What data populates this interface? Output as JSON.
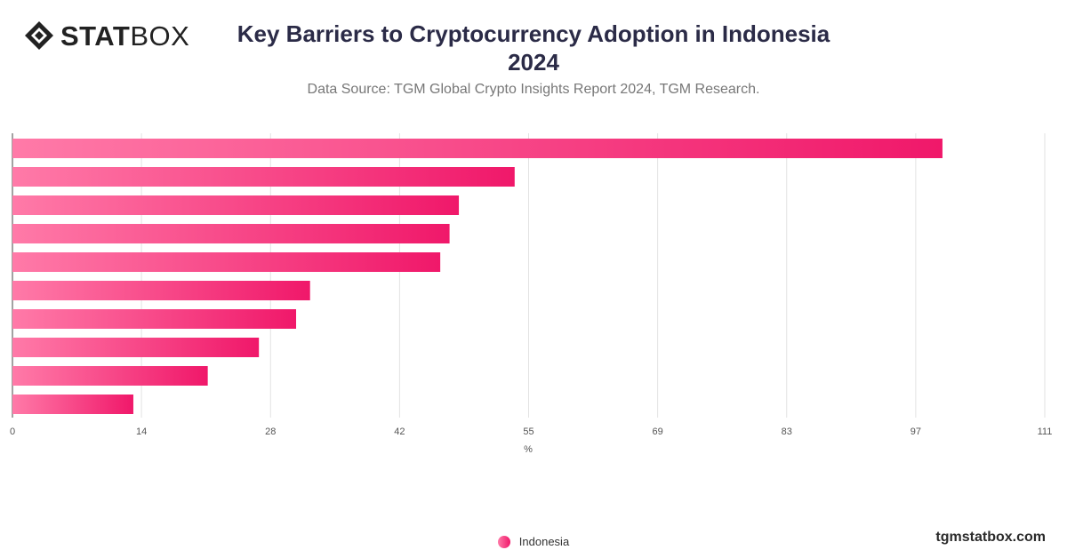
{
  "brand": {
    "logo_bold": "STAT",
    "logo_light": "BOX",
    "logo_icon": "diamond-logo-icon",
    "site": "tgmstatbox.com"
  },
  "header": {
    "title_line1": "Key Barriers to Cryptocurrency Adoption in Indonesia",
    "title_line2": "2024",
    "subtitle": "Data Source: TGM Global Crypto Insights Report 2024, TGM Research."
  },
  "chart_data": {
    "type": "bar",
    "orientation": "horizontal",
    "categories": [
      "",
      "",
      "",
      "",
      "",
      "",
      "",
      "",
      "",
      ""
    ],
    "series": [
      {
        "name": "Indonesia",
        "values": [
          100,
          54,
          48,
          47,
          46,
          32,
          30.5,
          26.5,
          21,
          13
        ]
      }
    ],
    "xlabel": "%",
    "ylabel": "",
    "xlim": [
      0,
      111
    ],
    "xticks": [
      "0",
      "14",
      "28",
      "42",
      "55",
      "69",
      "83",
      "97",
      "111"
    ],
    "grid": true,
    "legend_position": "bottom-center",
    "bar_color_start": "#ff7aa8",
    "bar_color_end": "#f0186a"
  }
}
